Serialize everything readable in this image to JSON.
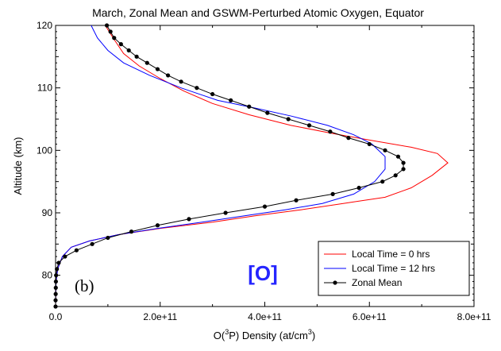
{
  "chart_data": {
    "type": "line",
    "title": "March, Zonal Mean and GSWM-Perturbed Atomic Oxygen, Equator",
    "xlabel_main": "O(",
    "xlabel_sup": "3",
    "xlabel_mid": "P) Density (at/cm",
    "xlabel_sup2": "3",
    "xlabel_end": ")",
    "ylabel": "Altitude (km)",
    "xlim": [
      0,
      800000000000.0
    ],
    "ylim": [
      75,
      120
    ],
    "x_ticks": [
      0,
      200000000000.0,
      400000000000.0,
      600000000000.0,
      800000000000.0
    ],
    "x_tick_labels": [
      "0.0",
      "2.0e+11",
      "4.0e+11",
      "6.0e+11",
      "8.0e+11"
    ],
    "y_ticks": [
      80,
      90,
      100,
      110,
      120
    ],
    "y_tick_labels": [
      "80",
      "90",
      "100",
      "110",
      "120"
    ],
    "annotations": {
      "species": "[O]",
      "panel": "(b)"
    },
    "legend_position": "bottom-right",
    "series": [
      {
        "name": "Local Time = 0 hrs",
        "color": "#ff0000",
        "marker": false,
        "points": [
          [
            0,
            75
          ],
          [
            300000000.0,
            77
          ],
          [
            1000000000.0,
            79
          ],
          [
            4000000000.0,
            81
          ],
          [
            13000000000.0,
            83
          ],
          [
            30000000000.0,
            84.5
          ],
          [
            65000000000.0,
            85.5
          ],
          [
            120000000000.0,
            86.5
          ],
          [
            200000000000.0,
            87.5
          ],
          [
            300000000000.0,
            88.5
          ],
          [
            380000000000.0,
            89.5
          ],
          [
            470000000000.0,
            90.5
          ],
          [
            550000000000.0,
            91.5
          ],
          [
            630000000000.0,
            92.5
          ],
          [
            680000000000.0,
            94
          ],
          [
            720000000000.0,
            96
          ],
          [
            750000000000.0,
            98
          ],
          [
            730000000000.0,
            99.5
          ],
          [
            680000000000.0,
            100.5
          ],
          [
            610000000000.0,
            101.5
          ],
          [
            530000000000.0,
            102.7
          ],
          [
            450000000000.0,
            104
          ],
          [
            370000000000.0,
            105.7
          ],
          [
            300000000000.0,
            107.5
          ],
          [
            245000000000.0,
            109.5
          ],
          [
            200000000000.0,
            111.5
          ],
          [
            160000000000.0,
            113.5
          ],
          [
            130000000000.0,
            115.5
          ],
          [
            110000000000.0,
            118
          ],
          [
            95000000000.0,
            120
          ]
        ]
      },
      {
        "name": "Local Time = 12 hrs",
        "color": "#0000ff",
        "marker": false,
        "points": [
          [
            0,
            75
          ],
          [
            300000000.0,
            77
          ],
          [
            1000000000.0,
            79
          ],
          [
            4000000000.0,
            81
          ],
          [
            13000000000.0,
            83
          ],
          [
            30000000000.0,
            84.5
          ],
          [
            65000000000.0,
            85.5
          ],
          [
            120000000000.0,
            86.5
          ],
          [
            195000000000.0,
            87.5
          ],
          [
            280000000000.0,
            88.5
          ],
          [
            360000000000.0,
            89.5
          ],
          [
            440000000000.0,
            90.5
          ],
          [
            510000000000.0,
            91.5
          ],
          [
            570000000000.0,
            93
          ],
          [
            610000000000.0,
            95
          ],
          [
            630000000000.0,
            97
          ],
          [
            630000000000.0,
            99
          ],
          [
            605000000000.0,
            101
          ],
          [
            570000000000.0,
            102.5
          ],
          [
            520000000000.0,
            104
          ],
          [
            450000000000.0,
            105.5
          ],
          [
            380000000000.0,
            106.8
          ],
          [
            310000000000.0,
            108
          ],
          [
            240000000000.0,
            110
          ],
          [
            180000000000.0,
            112
          ],
          [
            130000000000.0,
            114
          ],
          [
            100000000000.0,
            116
          ],
          [
            80000000000.0,
            118
          ],
          [
            68000000000.0,
            120
          ]
        ]
      },
      {
        "name": "Zonal Mean",
        "color": "#000000",
        "marker": true,
        "points": [
          [
            0,
            75
          ],
          [
            0,
            76
          ],
          [
            200000000.0,
            77
          ],
          [
            400000000.0,
            78
          ],
          [
            600000000.0,
            79
          ],
          [
            1000000000.0,
            80
          ],
          [
            2500000000.0,
            81
          ],
          [
            6000000000.0,
            82
          ],
          [
            18000000000.0,
            83
          ],
          [
            40000000000.0,
            84
          ],
          [
            70000000000.0,
            85
          ],
          [
            100000000000.0,
            86
          ],
          [
            145000000000.0,
            87
          ],
          [
            195000000000.0,
            88
          ],
          [
            255000000000.0,
            89
          ],
          [
            325000000000.0,
            90
          ],
          [
            400000000000.0,
            91
          ],
          [
            460000000000.0,
            92
          ],
          [
            530000000000.0,
            93
          ],
          [
            580000000000.0,
            94
          ],
          [
            625000000000.0,
            95
          ],
          [
            650000000000.0,
            96
          ],
          [
            665000000000.0,
            97
          ],
          [
            665000000000.0,
            98
          ],
          [
            655000000000.0,
            99
          ],
          [
            630000000000.0,
            100
          ],
          [
            600000000000.0,
            101
          ],
          [
            560000000000.0,
            102
          ],
          [
            525000000000.0,
            103
          ],
          [
            485000000000.0,
            104
          ],
          [
            445000000000.0,
            105
          ],
          [
            405000000000.0,
            106
          ],
          [
            370000000000.0,
            107
          ],
          [
            335000000000.0,
            108
          ],
          [
            300000000000.0,
            109
          ],
          [
            270000000000.0,
            110
          ],
          [
            240000000000.0,
            111
          ],
          [
            215000000000.0,
            112
          ],
          [
            195000000000.0,
            113
          ],
          [
            175000000000.0,
            114
          ],
          [
            155000000000.0,
            115
          ],
          [
            140000000000.0,
            116
          ],
          [
            125000000000.0,
            117
          ],
          [
            112000000000.0,
            118
          ],
          [
            105000000000.0,
            119
          ],
          [
            98000000000.0,
            120
          ]
        ]
      }
    ]
  }
}
